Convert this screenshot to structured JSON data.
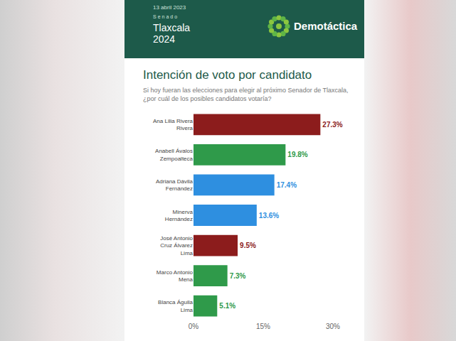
{
  "header": {
    "date": "13 abril 2023",
    "label": "Senado",
    "title": "Tlaxcala 2024",
    "brand": "Demotáctica"
  },
  "chart_data": {
    "type": "bar",
    "orientation": "horizontal",
    "title": "Intención de voto por candidato",
    "subtitle": "Si hoy fueran las elecciones para elegir al próximo Senador de Tlaxcala, ¿por cuál de los posibles candidatos votaría?",
    "categories": [
      "Ana Lilia Rivera Rivera",
      "Anabell Ávalos Zempoalteca",
      "Adriana Dávila Fernández",
      "Minerva Hernández",
      "José Antonio Cruz Álvarez Lima",
      "Marco Antonio Mena",
      "Blanca Águila Lima"
    ],
    "values": [
      27.3,
      19.8,
      17.4,
      13.6,
      9.5,
      7.3,
      5.1
    ],
    "value_labels": [
      "27.3%",
      "19.8%",
      "17.4%",
      "13.6%",
      "9.5%",
      "7.3%",
      "5.1%"
    ],
    "colors": [
      "#8c1c1c",
      "#2f9a4a",
      "#2e8fe0",
      "#2e8fe0",
      "#8c1c1c",
      "#2f9a4a",
      "#2f9a4a"
    ],
    "xlim": [
      0,
      30
    ],
    "xticks": [
      {
        "value": 0,
        "label": "0%"
      },
      {
        "value": 15,
        "label": "15%"
      },
      {
        "value": 30,
        "label": "30%"
      }
    ],
    "data_labels": true,
    "grid": false
  }
}
